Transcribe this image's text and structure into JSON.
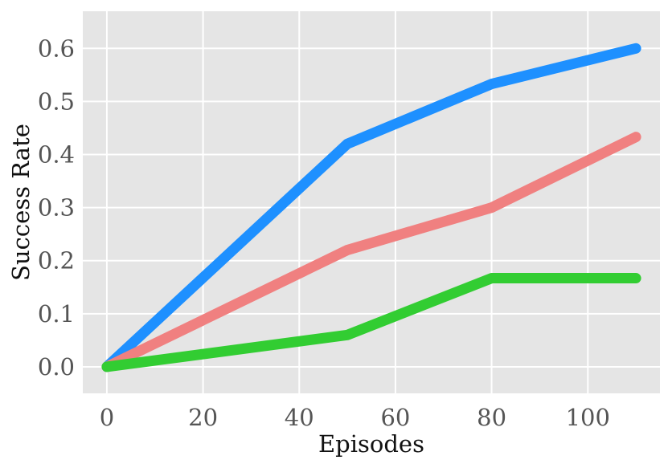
{
  "chart_data": {
    "type": "line",
    "title": "",
    "xlabel": "Episodes",
    "ylabel": "Success Rate",
    "xlim": [
      -5,
      115
    ],
    "ylim": [
      -0.05,
      0.67
    ],
    "grid": true,
    "legend": "none",
    "x_ticks": [
      0,
      20,
      40,
      60,
      80,
      100
    ],
    "x_tick_labels": [
      "0",
      "20",
      "40",
      "60",
      "80",
      "100"
    ],
    "y_ticks": [
      0.0,
      0.1,
      0.2,
      0.3,
      0.4,
      0.5,
      0.6
    ],
    "y_tick_labels": [
      "0.0",
      "0.1",
      "0.2",
      "0.3",
      "0.4",
      "0.5",
      "0.6"
    ],
    "x": [
      0,
      50,
      80,
      110
    ],
    "series": [
      {
        "color": "#1e90ff",
        "values": [
          0.0,
          0.42,
          0.533,
          0.6
        ]
      },
      {
        "color": "#f08080",
        "values": [
          0.0,
          0.22,
          0.3,
          0.433
        ]
      },
      {
        "color": "#32cd32",
        "values": [
          0.0,
          0.06,
          0.167,
          0.167
        ]
      }
    ]
  },
  "style": {
    "plot_background": "#e5e5e5",
    "grid_color": "#ffffff"
  }
}
